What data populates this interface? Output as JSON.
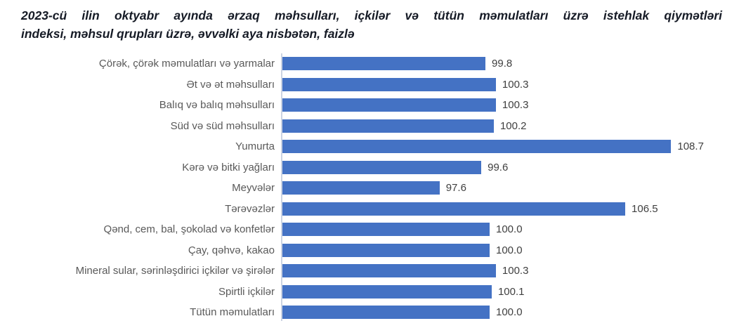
{
  "title": "2023-cü ilin oktyabr ayında ərzaq məhsulları, içkilər və tütün məmulatları üzrə istehlak qiymətləri indeksi, məhsul qrupları üzrə, əvvəlki aya nisbətən, faizlə",
  "title_lines": [
    "2023-cü ilin oktyabr ayında ərzaq məhsulları, içkilər və tütün məmulatları üzrə istehlak qiymətləri",
    "indeksi, məhsul qrupları üzrə, əvvəlki aya nisbətən, faizlə"
  ],
  "chart_data": {
    "type": "bar",
    "orientation": "horizontal",
    "title": "2023-cü ilin oktyabr ayında ərzaq məhsulları, içkilər və tütün məmulatları üzrə istehlak qiymətləri indeksi, məhsul qrupları üzrə, əvvəlki aya nisbətən, faizlə",
    "categories": [
      "Çörək, çörək məmulatları  və yarmalar",
      "Ət və ət məhsulları",
      "Balıq və balıq məhsulları",
      "Süd və süd məhsulları",
      "Yumurta",
      "Kərə və bitki yağları",
      "Meyvələr",
      "Tərəvəzlər",
      "Qənd, cem, bal, şokolad və konfetlər",
      "Çay, qəhvə, kakao",
      "Mineral sular, sərinləşdirici içkilər və şirələr",
      "Spirtli içkilər",
      "Tütün məmulatları"
    ],
    "values": [
      99.8,
      100.3,
      100.3,
      100.2,
      108.7,
      99.6,
      97.6,
      106.5,
      100.0,
      100.0,
      100.3,
      100.1,
      100.0
    ],
    "value_labels": [
      "99.8",
      "100.3",
      "100.3",
      "100.2",
      "108.7",
      "99.6",
      "97.6",
      "106.5",
      "100.0",
      "100.0",
      "100.3",
      "100.1",
      "100.0"
    ],
    "xlabel": "",
    "ylabel": "",
    "xlim": [
      90,
      110
    ],
    "grid": false,
    "legend": false,
    "data_labels": "outside-end"
  },
  "colors": {
    "bar": "#4472c4",
    "axis_line": "#ccd4e2",
    "category_label": "#595959",
    "value_label": "#404040",
    "title_text": "#161b26",
    "background": "#ffffff"
  }
}
